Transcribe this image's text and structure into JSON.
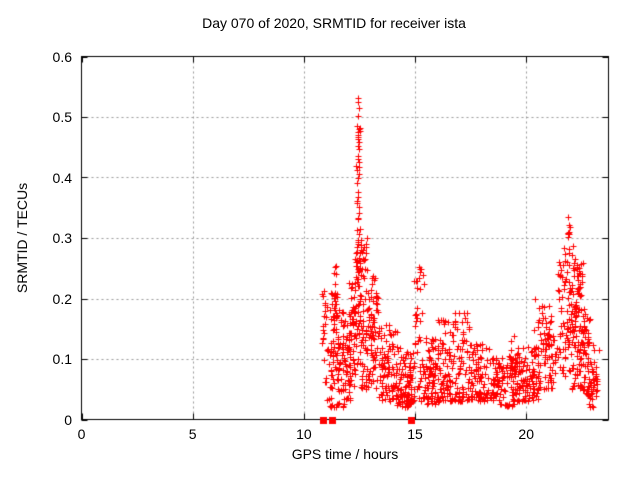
{
  "chart_data": {
    "type": "scatter",
    "title": "Day 070 of 2020, SRMTID for receiver ista",
    "xlabel": "GPS time / hours",
    "ylabel": "SRMTID / TECUs",
    "xlim": [
      0,
      23.7
    ],
    "ylim": [
      0,
      0.6
    ],
    "xticks": [
      [
        0,
        "0"
      ],
      [
        5,
        "5"
      ],
      [
        10,
        "10"
      ],
      [
        15,
        "15"
      ],
      [
        20,
        "20"
      ]
    ],
    "yticks": [
      [
        0,
        "0"
      ],
      [
        0.1,
        "0.1"
      ],
      [
        0.2,
        "0.2"
      ],
      [
        0.3,
        "0.3"
      ],
      [
        0.4,
        "0.4"
      ],
      [
        0.5,
        "0.5"
      ],
      [
        0.6,
        "0.6"
      ]
    ],
    "grid": true,
    "grid_color": "#9a9a9a",
    "frame_color": "#000000",
    "background": "#ffffff",
    "seed": 7,
    "series": [
      {
        "name": "series-plus",
        "marker": "plus",
        "color": "#ff0000",
        "marker_size": 7,
        "bands": [
          [
            10.82,
            11.05,
            0.12,
            0.215,
            16,
            1.0
          ],
          [
            10.9,
            11.2,
            0.03,
            0.12,
            10,
            1.0
          ],
          [
            11.15,
            11.5,
            0.02,
            0.21,
            60,
            1.25
          ],
          [
            11.3,
            11.52,
            0.15,
            0.255,
            12,
            1.0
          ],
          [
            11.5,
            11.8,
            0.02,
            0.185,
            45,
            1.35
          ],
          [
            11.8,
            12.1,
            0.03,
            0.165,
            38,
            1.2
          ],
          [
            12.05,
            12.3,
            0.05,
            0.23,
            40,
            1.1
          ],
          [
            12.3,
            12.58,
            0.09,
            0.305,
            65,
            1.0
          ],
          [
            12.35,
            12.55,
            0.3,
            0.49,
            20,
            1.0
          ],
          [
            12.58,
            12.85,
            0.05,
            0.3,
            48,
            1.25
          ],
          [
            12.85,
            13.35,
            0.05,
            0.215,
            60,
            1.15
          ],
          [
            13.0,
            13.3,
            0.14,
            0.235,
            14,
            1.0
          ],
          [
            13.35,
            14.2,
            0.03,
            0.16,
            95,
            1.35
          ],
          [
            14.2,
            15.0,
            0.02,
            0.12,
            95,
            1.35
          ],
          [
            14.95,
            15.45,
            0.03,
            0.255,
            50,
            1.55
          ],
          [
            15.45,
            16.05,
            0.025,
            0.135,
            70,
            1.25
          ],
          [
            16.0,
            16.65,
            0.03,
            0.165,
            70,
            1.3
          ],
          [
            16.65,
            17.45,
            0.03,
            0.178,
            80,
            1.35
          ],
          [
            17.45,
            18.4,
            0.03,
            0.125,
            85,
            1.3
          ],
          [
            18.4,
            19.6,
            0.022,
            0.105,
            115,
            1.25
          ],
          [
            19.3,
            19.55,
            0.08,
            0.14,
            8,
            1.0
          ],
          [
            19.6,
            20.6,
            0.03,
            0.125,
            95,
            1.25
          ],
          [
            20.35,
            20.6,
            0.1,
            0.2,
            10,
            1.0
          ],
          [
            20.6,
            21.4,
            0.05,
            0.19,
            75,
            1.15
          ],
          [
            21.4,
            22.0,
            0.07,
            0.285,
            70,
            1.05
          ],
          [
            21.82,
            21.98,
            0.28,
            0.32,
            7,
            1.0
          ],
          [
            22.0,
            22.55,
            0.12,
            0.265,
            75,
            1.05
          ],
          [
            22.05,
            22.65,
            0.05,
            0.135,
            40,
            1.2
          ],
          [
            22.55,
            22.85,
            0.04,
            0.185,
            45,
            1.25
          ],
          [
            22.8,
            23.2,
            0.02,
            0.095,
            28,
            1.15
          ],
          [
            23.0,
            23.3,
            0.05,
            0.125,
            12,
            1.1
          ]
        ],
        "points": [
          [
            12.42,
            0.531
          ],
          [
            12.45,
            0.524
          ],
          [
            12.47,
            0.515
          ],
          [
            12.44,
            0.501
          ],
          [
            12.42,
            0.476
          ],
          [
            12.45,
            0.47
          ],
          [
            12.43,
            0.464
          ],
          [
            12.46,
            0.459
          ],
          [
            12.44,
            0.452
          ],
          [
            12.47,
            0.447
          ],
          [
            12.43,
            0.43
          ],
          [
            12.46,
            0.406
          ],
          [
            12.44,
            0.399
          ],
          [
            12.45,
            0.376
          ],
          [
            12.5,
            0.352
          ],
          [
            12.48,
            0.341
          ],
          [
            21.9,
            0.335
          ],
          [
            21.91,
            0.321
          ],
          [
            21.89,
            0.306
          ],
          [
            22.12,
            0.286
          ],
          [
            22.08,
            0.272
          ],
          [
            22.18,
            0.266
          ],
          [
            22.3,
            0.252
          ],
          [
            15.18,
            0.252
          ],
          [
            15.22,
            0.243
          ],
          [
            16.35,
            0.162
          ],
          [
            17.18,
            0.176
          ],
          [
            17.25,
            0.168
          ],
          [
            13.1,
            0.238
          ]
        ]
      },
      {
        "name": "series-square",
        "marker": "square",
        "color": "#ff0000",
        "marker_size": 7,
        "points": [
          [
            10.87,
            0
          ],
          [
            11.27,
            0
          ],
          [
            14.82,
            0
          ]
        ]
      }
    ]
  }
}
